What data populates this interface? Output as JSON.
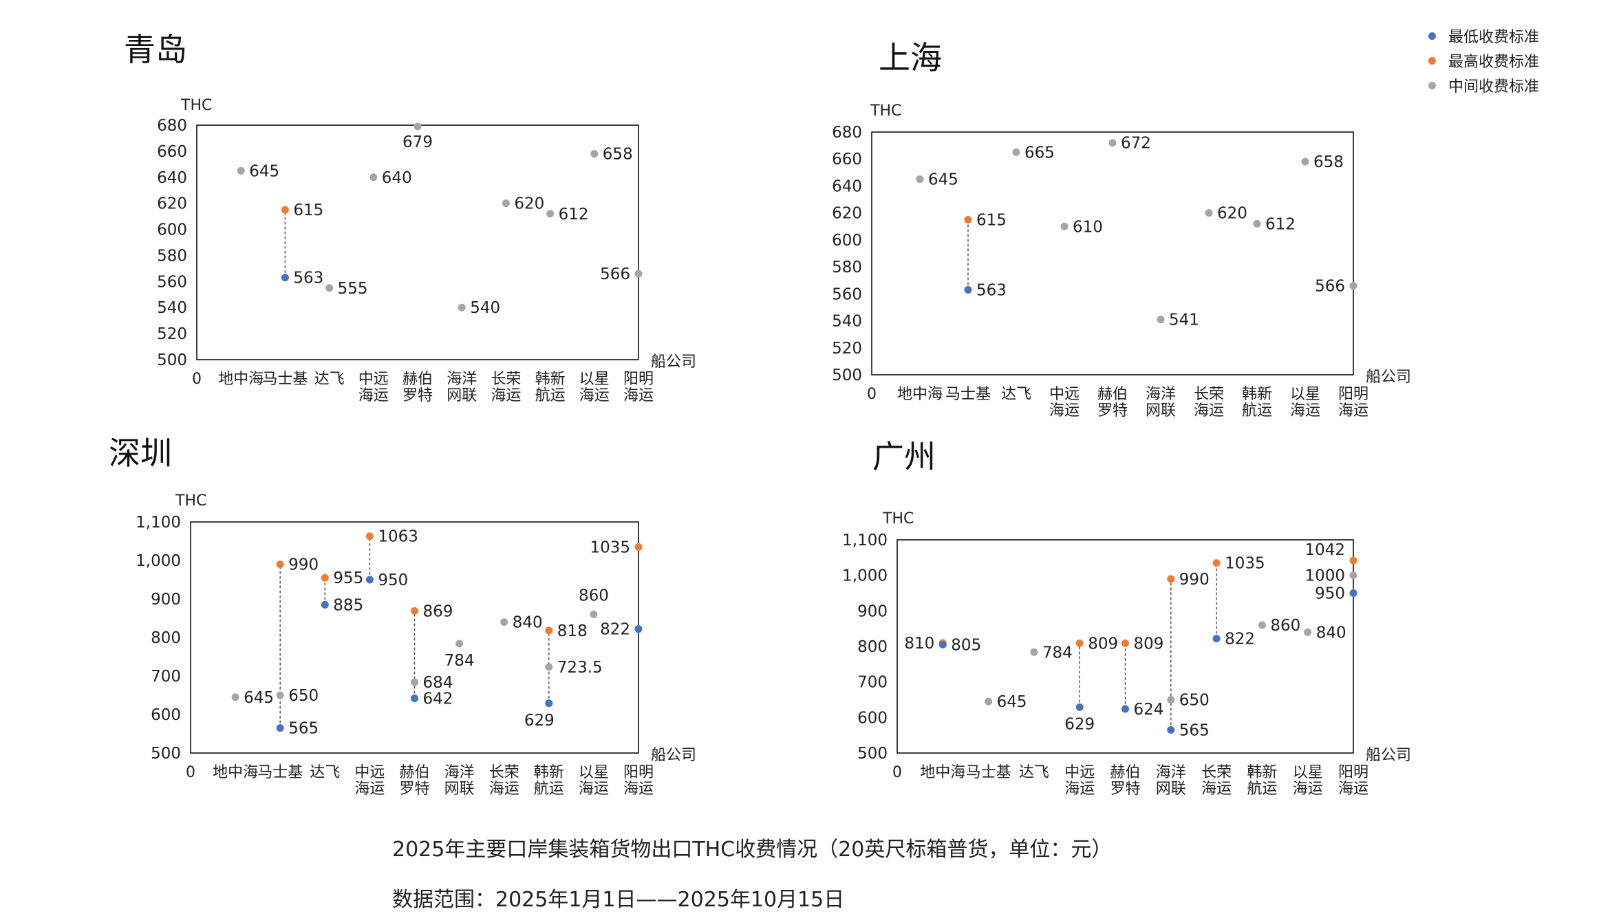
{
  "legend": [
    {
      "key": "min",
      "label": "最低收费标准",
      "color": "#4472C4"
    },
    {
      "key": "max",
      "label": "最高收费标准",
      "color": "#ED7D31"
    },
    {
      "key": "mid",
      "label": "中间收费标准",
      "color": "#A5A5A5"
    }
  ],
  "caption": {
    "line1": "2025年主要口岸集装箱货物出口THC收费情况（20英尺标箱普货，单位：元）",
    "line2": "数据范围：2025年1月1日——2025年10月15日"
  },
  "chart_data": [
    {
      "type": "scatter",
      "title": "青岛",
      "ylabel": "THC",
      "xlabel": "船公司",
      "ylim": [
        500,
        680
      ],
      "yticks": [
        "500",
        "520",
        "540",
        "560",
        "580",
        "600",
        "620",
        "640",
        "660",
        "680"
      ],
      "x_origin_label": "0",
      "categories": [
        "地中海",
        "马士基",
        "达飞",
        "中远海运",
        "赫伯罗特",
        "海洋网联",
        "长荣海运",
        "韩新航运",
        "以星海运",
        "阳明海运"
      ],
      "category_labels": [
        [
          "地中海"
        ],
        [
          "马士基"
        ],
        [
          "达飞"
        ],
        [
          "中远",
          "海运"
        ],
        [
          "赫伯",
          "罗特"
        ],
        [
          "海洋",
          "网联"
        ],
        [
          "长荣",
          "海运"
        ],
        [
          "韩新",
          "航运"
        ],
        [
          "以星",
          "海运"
        ],
        [
          "阳明",
          "海运"
        ]
      ],
      "points": [
        {
          "x": 1,
          "y": 645,
          "series": "mid",
          "label": "645"
        },
        {
          "x": 2,
          "y": 615,
          "series": "max",
          "label": "615"
        },
        {
          "x": 2,
          "y": 563,
          "series": "min",
          "label": "563"
        },
        {
          "x": 3,
          "y": 555,
          "series": "mid",
          "label": "555"
        },
        {
          "x": 4,
          "y": 640,
          "series": "mid",
          "label": "640"
        },
        {
          "x": 5,
          "y": 679,
          "series": "mid",
          "label": "679"
        },
        {
          "x": 6,
          "y": 540,
          "series": "mid",
          "label": "540"
        },
        {
          "x": 7,
          "y": 620,
          "series": "mid",
          "label": "620"
        },
        {
          "x": 8,
          "y": 612,
          "series": "mid",
          "label": "612"
        },
        {
          "x": 9,
          "y": 658,
          "series": "mid",
          "label": "658"
        },
        {
          "x": 10,
          "y": 566,
          "series": "mid",
          "label": "566"
        }
      ],
      "ranges": [
        {
          "x": 2,
          "from": 563,
          "to": 615
        }
      ]
    },
    {
      "type": "scatter",
      "title": "上海",
      "ylabel": "THC",
      "xlabel": "船公司",
      "ylim": [
        500,
        680
      ],
      "yticks": [
        "500",
        "520",
        "540",
        "560",
        "580",
        "600",
        "620",
        "640",
        "660",
        "680"
      ],
      "x_origin_label": "0",
      "categories": [
        "地中海",
        "马士基",
        "达飞",
        "中远海运",
        "赫伯罗特",
        "海洋网联",
        "长荣海运",
        "韩新航运",
        "以星海运",
        "阳明海运"
      ],
      "category_labels": [
        [
          "地中海"
        ],
        [
          "马士基"
        ],
        [
          "达飞"
        ],
        [
          "中远",
          "海运"
        ],
        [
          "赫伯",
          "罗特"
        ],
        [
          "海洋",
          "网联"
        ],
        [
          "长荣",
          "海运"
        ],
        [
          "韩新",
          "航运"
        ],
        [
          "以星",
          "海运"
        ],
        [
          "阳明",
          "海运"
        ]
      ],
      "points": [
        {
          "x": 1,
          "y": 645,
          "series": "mid",
          "label": "645"
        },
        {
          "x": 2,
          "y": 615,
          "series": "max",
          "label": "615"
        },
        {
          "x": 2,
          "y": 563,
          "series": "min",
          "label": "563"
        },
        {
          "x": 3,
          "y": 665,
          "series": "mid",
          "label": "665"
        },
        {
          "x": 4,
          "y": 610,
          "series": "mid",
          "label": "610"
        },
        {
          "x": 5,
          "y": 672,
          "series": "mid",
          "label": "672"
        },
        {
          "x": 6,
          "y": 541,
          "series": "mid",
          "label": "541"
        },
        {
          "x": 7,
          "y": 620,
          "series": "mid",
          "label": "620"
        },
        {
          "x": 8,
          "y": 612,
          "series": "mid",
          "label": "612"
        },
        {
          "x": 9,
          "y": 658,
          "series": "mid",
          "label": "658"
        },
        {
          "x": 10,
          "y": 566,
          "series": "mid",
          "label": "566"
        }
      ],
      "ranges": [
        {
          "x": 2,
          "from": 563,
          "to": 615
        }
      ]
    },
    {
      "type": "scatter",
      "title": "深圳",
      "ylabel": "THC",
      "xlabel": "船公司",
      "ylim": [
        500,
        1100
      ],
      "yticks": [
        "500",
        "600",
        "700",
        "800",
        "900",
        "1,000",
        "1,100"
      ],
      "x_origin_label": "0",
      "categories": [
        "地中海",
        "马士基",
        "达飞",
        "中远海运",
        "赫伯罗特",
        "海洋网联",
        "长荣海运",
        "韩新航运",
        "以星海运",
        "阳明海运"
      ],
      "category_labels": [
        [
          "地中海"
        ],
        [
          "马士基"
        ],
        [
          "达飞"
        ],
        [
          "中远",
          "海运"
        ],
        [
          "赫伯",
          "罗特"
        ],
        [
          "海洋",
          "网联"
        ],
        [
          "长荣",
          "海运"
        ],
        [
          "韩新",
          "航运"
        ],
        [
          "以星",
          "海运"
        ],
        [
          "阳明",
          "海运"
        ]
      ],
      "points": [
        {
          "x": 1,
          "y": 645,
          "series": "mid",
          "label": "645"
        },
        {
          "x": 2,
          "y": 990,
          "series": "max",
          "label": "990"
        },
        {
          "x": 2,
          "y": 650,
          "series": "mid",
          "label": "650"
        },
        {
          "x": 2,
          "y": 565,
          "series": "min",
          "label": "565"
        },
        {
          "x": 3,
          "y": 955,
          "series": "max",
          "label": "955"
        },
        {
          "x": 3,
          "y": 885,
          "series": "min",
          "label": "885"
        },
        {
          "x": 4,
          "y": 1063,
          "series": "max",
          "label": "1063"
        },
        {
          "x": 4,
          "y": 950,
          "series": "min",
          "label": "950"
        },
        {
          "x": 5,
          "y": 869,
          "series": "max",
          "label": "869"
        },
        {
          "x": 5,
          "y": 684,
          "series": "mid",
          "label": "684"
        },
        {
          "x": 5,
          "y": 642,
          "series": "min",
          "label": "642"
        },
        {
          "x": 6,
          "y": 784,
          "series": "mid",
          "label": "784"
        },
        {
          "x": 7,
          "y": 840,
          "series": "mid",
          "label": "840"
        },
        {
          "x": 8,
          "y": 818,
          "series": "max",
          "label": "818"
        },
        {
          "x": 8,
          "y": 723.5,
          "series": "mid",
          "label": "723.5"
        },
        {
          "x": 8,
          "y": 629,
          "series": "min",
          "label": "629"
        },
        {
          "x": 9,
          "y": 860,
          "series": "mid",
          "label": "860"
        },
        {
          "x": 10,
          "y": 1035,
          "series": "max",
          "label": "1035"
        },
        {
          "x": 10,
          "y": 822,
          "series": "min",
          "label": "822"
        }
      ],
      "ranges": [
        {
          "x": 2,
          "from": 565,
          "to": 990
        },
        {
          "x": 3,
          "from": 885,
          "to": 955
        },
        {
          "x": 4,
          "from": 950,
          "to": 1063
        },
        {
          "x": 5,
          "from": 642,
          "to": 869
        },
        {
          "x": 8,
          "from": 629,
          "to": 818
        }
      ]
    },
    {
      "type": "scatter",
      "title": "广州",
      "ylabel": "THC",
      "xlabel": "船公司",
      "ylim": [
        500,
        1100
      ],
      "yticks": [
        "500",
        "600",
        "700",
        "800",
        "900",
        "1,000",
        "1,100"
      ],
      "x_origin_label": "0",
      "categories": [
        "地中海",
        "马士基",
        "达飞",
        "中远海运",
        "赫伯罗特",
        "海洋网联",
        "长荣海运",
        "韩新航运",
        "以星海运",
        "阳明海运"
      ],
      "category_labels": [
        [
          "地中海"
        ],
        [
          "马士基"
        ],
        [
          "达飞"
        ],
        [
          "中远",
          "海运"
        ],
        [
          "赫伯",
          "罗特"
        ],
        [
          "海洋",
          "网联"
        ],
        [
          "长荣",
          "海运"
        ],
        [
          "韩新",
          "航运"
        ],
        [
          "以星",
          "海运"
        ],
        [
          "阳明",
          "海运"
        ]
      ],
      "points": [
        {
          "x": 1,
          "y": 810,
          "series": "max",
          "label": "810"
        },
        {
          "x": 1,
          "y": 805,
          "series": "min",
          "label": "805"
        },
        {
          "x": 2,
          "y": 645,
          "series": "mid",
          "label": "645"
        },
        {
          "x": 3,
          "y": 784,
          "series": "mid",
          "label": "784"
        },
        {
          "x": 4,
          "y": 809,
          "series": "max",
          "label": "809"
        },
        {
          "x": 4,
          "y": 629,
          "series": "min",
          "label": "629"
        },
        {
          "x": 5,
          "y": 809,
          "series": "max",
          "label": "809"
        },
        {
          "x": 5,
          "y": 624,
          "series": "min",
          "label": "624"
        },
        {
          "x": 6,
          "y": 990,
          "series": "max",
          "label": "990"
        },
        {
          "x": 6,
          "y": 650,
          "series": "mid",
          "label": "650"
        },
        {
          "x": 6,
          "y": 565,
          "series": "min",
          "label": "565"
        },
        {
          "x": 7,
          "y": 1035,
          "series": "max",
          "label": "1035"
        },
        {
          "x": 7,
          "y": 822,
          "series": "min",
          "label": "822"
        },
        {
          "x": 8,
          "y": 860,
          "series": "mid",
          "label": "860"
        },
        {
          "x": 9,
          "y": 840,
          "series": "mid",
          "label": "840"
        },
        {
          "x": 10,
          "y": 1042,
          "series": "max",
          "label": "1042"
        },
        {
          "x": 10,
          "y": 1000,
          "series": "mid",
          "label": "1000"
        },
        {
          "x": 10,
          "y": 950,
          "series": "min",
          "label": "950"
        }
      ],
      "ranges": [
        {
          "x": 4,
          "from": 629,
          "to": 809
        },
        {
          "x": 5,
          "from": 624,
          "to": 809
        },
        {
          "x": 6,
          "from": 565,
          "to": 990
        },
        {
          "x": 7,
          "from": 822,
          "to": 1035
        }
      ]
    }
  ]
}
